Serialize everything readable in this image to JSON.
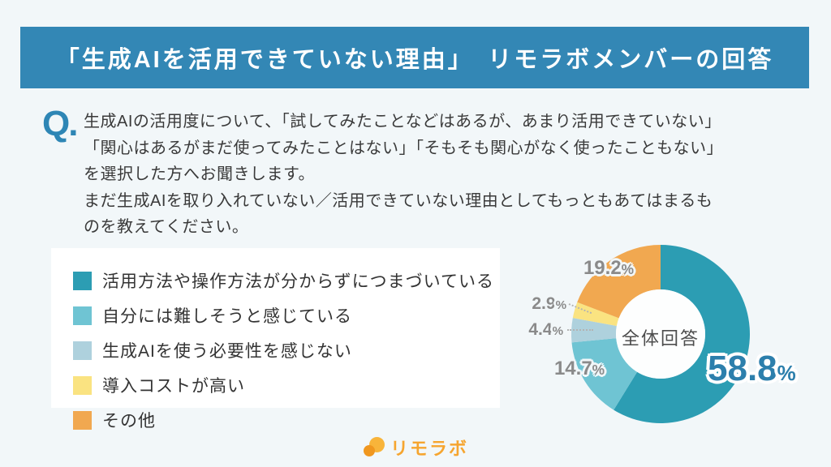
{
  "page": {
    "background": "#F2F7F9"
  },
  "header": {
    "title": "「生成AIを活用できていない理由」　リモラボメンバーの回答",
    "background": "#3387B5",
    "text_color": "#FFFFFF"
  },
  "question": {
    "marker": "Q.",
    "marker_color": "#2E86B5",
    "lines": [
      "生成AIの活用度について、「試してみたことなどはあるが、あまり活用できていない」",
      "「関心はあるがまだ使ってみたことはない」「そもそも関心がなく使ったこともない」",
      "を選択した方へお聞きします。",
      "まだ生成AIを取り入れていない／活用できていない理由としてもっともあてはまるも",
      "のを教えてください。"
    ]
  },
  "legend": {
    "items": [
      {
        "label": "活用方法や操作方法が分からずにつまづいている",
        "color": "#2C9DB3"
      },
      {
        "label": "自分には難しそうと感じている",
        "color": "#6FC4D3"
      },
      {
        "label": "生成AIを使う必要性を感じない",
        "color": "#AED1DD"
      },
      {
        "label": "導入コストが高い",
        "color": "#FAE381"
      },
      {
        "label": "その他",
        "color": "#F1A850"
      }
    ]
  },
  "chart_data": {
    "type": "pie",
    "subtype": "donut",
    "title": "「生成AIを活用できていない理由」　リモラボメンバーの回答",
    "center_label": "全体回答",
    "start_angle_deg": 0,
    "direction": "clockwise",
    "series": [
      {
        "name": "活用方法や操作方法が分からずにつまづいている",
        "value": 58.8,
        "color": "#2C9DB3"
      },
      {
        "name": "自分には難しそうと感じている",
        "value": 14.7,
        "color": "#6FC4D3"
      },
      {
        "name": "生成AIを使う必要性を感じない",
        "value": 4.4,
        "color": "#AED1DD"
      },
      {
        "name": "導入コストが高い",
        "value": 2.9,
        "color": "#FAE381"
      },
      {
        "name": "その他",
        "value": 19.2,
        "color": "#F1A850"
      }
    ],
    "value_labels": {
      "main": {
        "text": "58.8",
        "unit": "%",
        "color": "#2C7FAC"
      },
      "second": {
        "text": "14.7",
        "unit": "%"
      },
      "third": {
        "text": "4.4",
        "unit": "%"
      },
      "fourth": {
        "text": "2.9",
        "unit": "%"
      },
      "fifth": {
        "text": "19.2",
        "unit": "%"
      }
    }
  },
  "footer": {
    "logo_text": "リモラボ",
    "logo_color": "#F6A52F"
  }
}
